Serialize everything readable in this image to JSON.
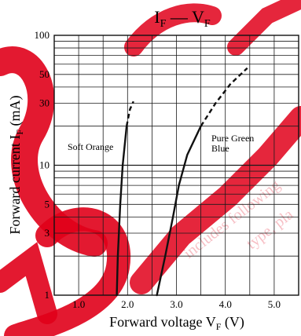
{
  "chart_data": {
    "type": "line",
    "title": {
      "main": "I",
      "main_sub": "F",
      "dash": " — ",
      "second": "V",
      "second_sub": "F"
    },
    "xlabel": {
      "text": "Forward voltage  V",
      "sub": "F",
      "unit": "  (V)"
    },
    "ylabel": {
      "text": "Forward current  I",
      "sub": "F",
      "unit": "  (mA)"
    },
    "x_scale": "linear",
    "y_scale": "log",
    "xlim": [
      0.5,
      5.5
    ],
    "ylim": [
      1,
      100
    ],
    "xticks": [
      1.0,
      2.0,
      3.0,
      4.0,
      5.0
    ],
    "xtick_labels": [
      "1.0",
      "2.0",
      "3.0",
      "4.0",
      "5.0"
    ],
    "yticks": [
      1,
      3,
      5,
      10,
      30,
      50,
      100
    ],
    "ytick_labels": [
      "1",
      "3",
      "5",
      "10",
      "30",
      "50",
      "100"
    ],
    "grid": true,
    "series": [
      {
        "name": "Soft Orange",
        "color": "#111111",
        "solid": [
          [
            1.78,
            1
          ],
          [
            1.8,
            2
          ],
          [
            1.85,
            5
          ],
          [
            1.9,
            10
          ],
          [
            1.98,
            20
          ]
        ],
        "dashed": [
          [
            1.98,
            20
          ],
          [
            2.05,
            27
          ],
          [
            2.12,
            31
          ]
        ]
      },
      {
        "name": "Pure Green\nBlue",
        "color": "#111111",
        "solid": [
          [
            2.6,
            1
          ],
          [
            2.77,
            2
          ],
          [
            2.93,
            4
          ],
          [
            3.05,
            7
          ],
          [
            3.22,
            12
          ],
          [
            3.5,
            20
          ]
        ],
        "dashed": [
          [
            3.5,
            20
          ],
          [
            3.8,
            30
          ],
          [
            4.1,
            42
          ],
          [
            4.45,
            56
          ]
        ]
      }
    ]
  },
  "watermark": {
    "color": "#e0001a",
    "secondary_text": [
      "includes following",
      "type, pla"
    ]
  }
}
